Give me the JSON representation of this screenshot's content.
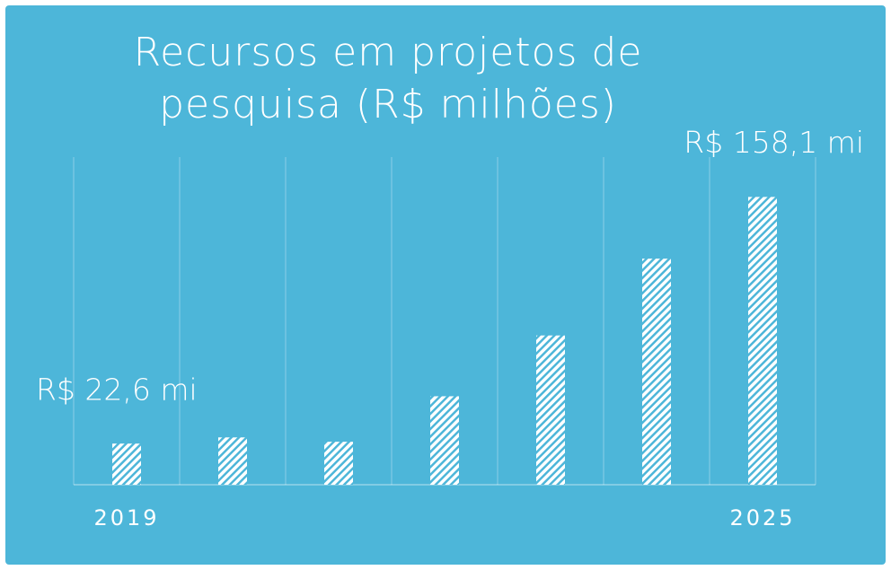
{
  "chart_data": {
    "type": "bar",
    "title": "Recursos em projetos de pesquisa (R$ milhões)",
    "categories": [
      "2019",
      null,
      null,
      null,
      null,
      null,
      "2025"
    ],
    "values": [
      22.6,
      26.0,
      23.6,
      48.6,
      82.0,
      124.2,
      158.1
    ],
    "value_labels": [
      "R$ 22,6 mi",
      null,
      null,
      null,
      null,
      null,
      "R$ 158,1 mi"
    ],
    "color": "#ffffff",
    "ylim": [
      0,
      180
    ]
  }
}
